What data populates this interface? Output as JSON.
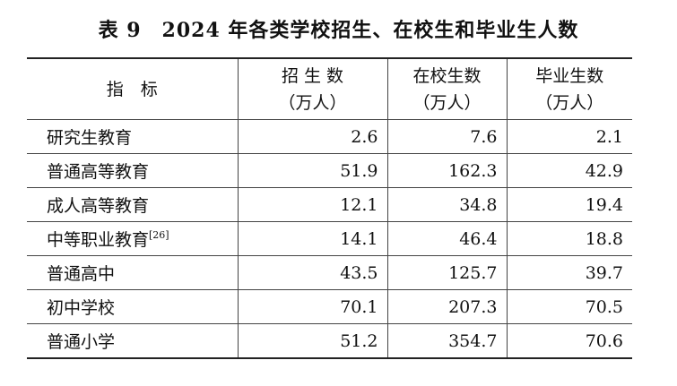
{
  "title": "表 9　2024 年各类学校招生、在校生和毕业生人数",
  "table": {
    "header": [
      {
        "label": "指　标"
      },
      {
        "label": "招 生 数",
        "unit": "（万人）"
      },
      {
        "label": "在校生数",
        "unit": "（万人）"
      },
      {
        "label": "毕业生数",
        "unit": "（万人）"
      }
    ],
    "rows": [
      {
        "name": "研究生教育",
        "values": [
          2.6,
          7.6,
          2.1
        ]
      },
      {
        "name": "普通高等教育",
        "values": [
          51.9,
          162.3,
          42.9
        ]
      },
      {
        "name": "成人高等教育",
        "values": [
          12.1,
          34.8,
          19.4
        ]
      },
      {
        "name": "中等职业教育",
        "note": "[26]",
        "values": [
          14.1,
          46.4,
          18.8
        ]
      },
      {
        "name": "普通高中",
        "values": [
          43.5,
          125.7,
          39.7
        ]
      },
      {
        "name": "初中学校",
        "values": [
          70.1,
          207.3,
          70.5
        ]
      },
      {
        "name": "普通小学",
        "values": [
          51.2,
          354.7,
          70.6
        ]
      }
    ]
  }
}
